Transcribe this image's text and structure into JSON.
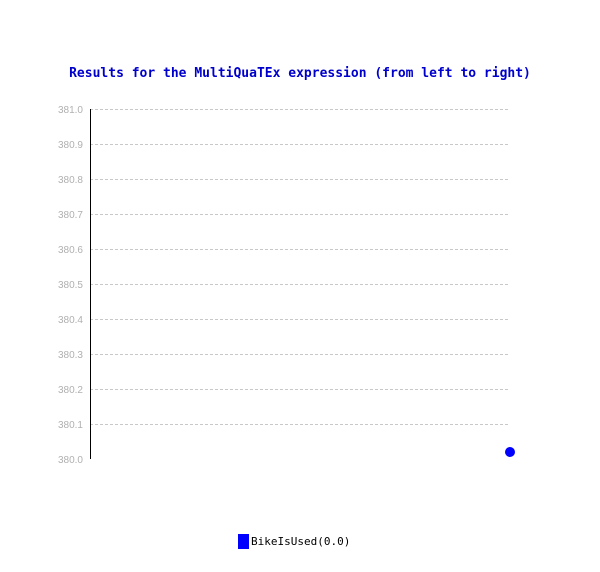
{
  "chart_data": {
    "type": "scatter",
    "title": "Results for the MultiQuaTEx expression (from left to right)",
    "xlabel": "",
    "ylabel": "",
    "ylim": [
      380.0,
      381.0
    ],
    "y_ticks": [
      "380.0",
      "380.1",
      "380.2",
      "380.3",
      "380.4",
      "380.5",
      "380.6",
      "380.7",
      "380.8",
      "380.9",
      "381.0"
    ],
    "grid": true,
    "legend_position": "bottom",
    "series": [
      {
        "name": "BikeIsUsed(0.0)",
        "color": "#0000ff",
        "points": [
          {
            "x": 0.0,
            "y": 380.02
          }
        ]
      }
    ]
  }
}
